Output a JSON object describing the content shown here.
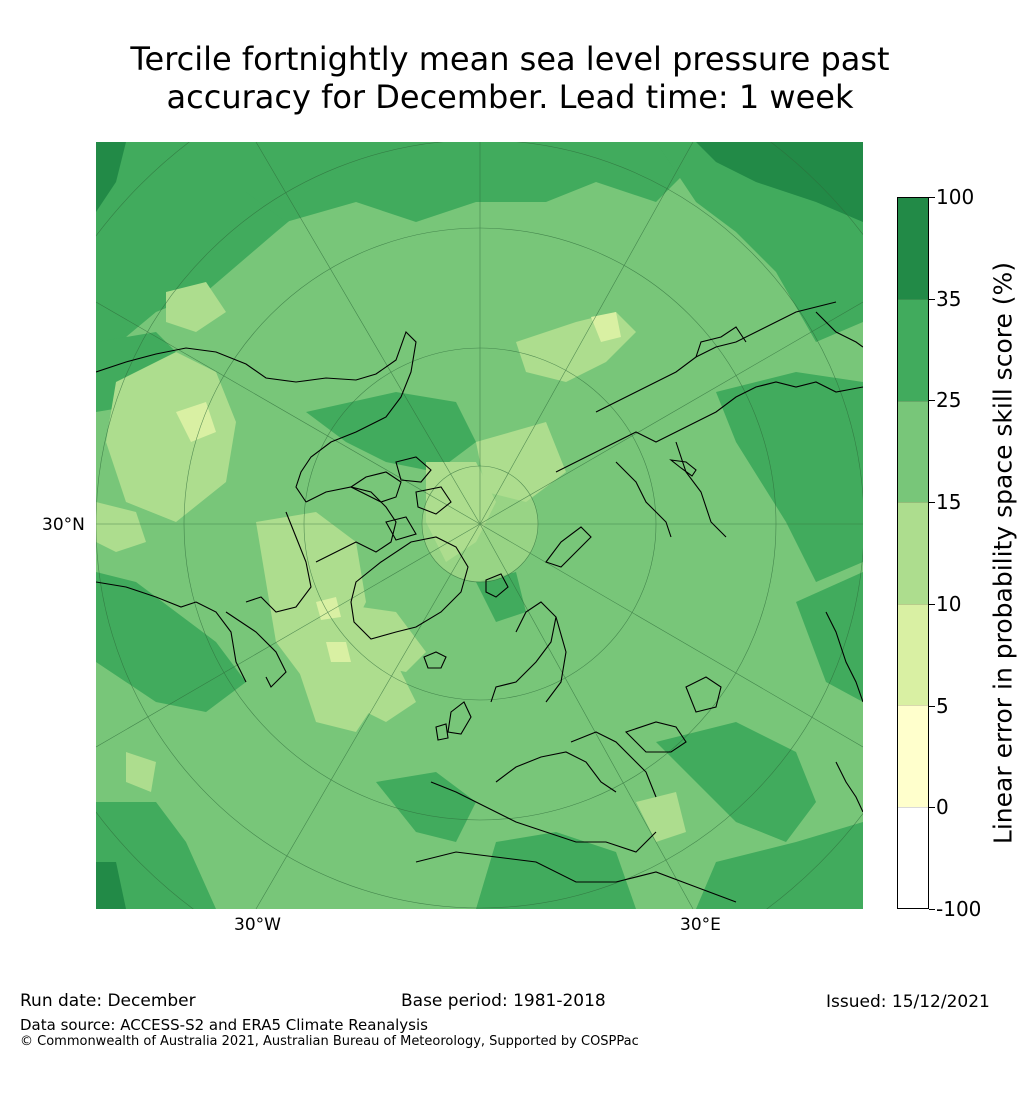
{
  "title_line1": "Tercile fortnightly mean sea level pressure past",
  "title_line2": "accuracy for December. Lead time: 1 week",
  "map": {
    "labels": {
      "lat": "30°N",
      "lon_west": "30°W",
      "lon_east": "30°E"
    },
    "colors": {
      "c100": "#228a47",
      "c35": "#41ab5d",
      "c25": "#78c679",
      "c15": "#addd8e",
      "c10": "#d9f0a3",
      "c5": "#ffffcc",
      "c0": "#ffffff",
      "coast": "#000000",
      "grid": "#2e6b3a"
    }
  },
  "colorbar": {
    "title": "Linear error in probability space skill score (%)",
    "ticks": [
      "100",
      "35",
      "25",
      "15",
      "10",
      "5",
      "0",
      "-100"
    ],
    "colors": [
      "#228a47",
      "#41ab5d",
      "#78c679",
      "#addd8e",
      "#d9f0a3",
      "#ffffcc",
      "#ffffff"
    ]
  },
  "footer": {
    "run_date": "Run date: December",
    "base_period": "Base period: 1981-2018",
    "issued": "Issued: 15/12/2021",
    "data_source": "Data source: ACCESS-S2 and ERA5 Climate Reanalysis",
    "copyright": "© Commonwealth of Australia 2021, Australian Bureau of Meteorology, Supported by COSPPac"
  }
}
